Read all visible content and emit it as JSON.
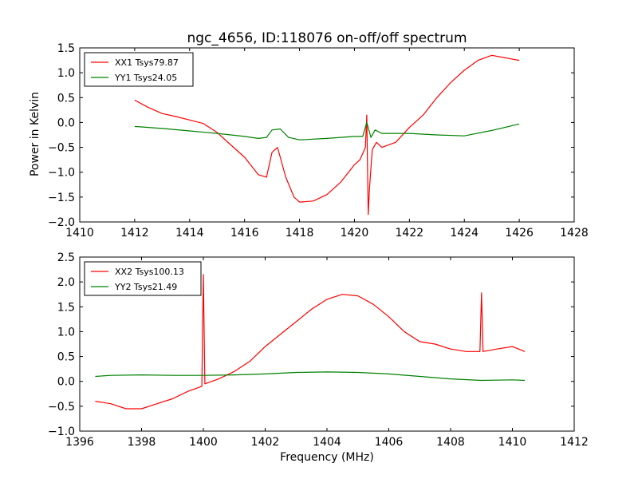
{
  "figure": {
    "title": "ngc_4656, ID:118076 on-off/off spectrum",
    "ylabel": "Power in Kelvin",
    "xlabel": "Frequency (MHz)"
  },
  "chart_data": [
    {
      "type": "line",
      "title": "ngc_4656, ID:118076 on-off/off spectrum",
      "xlabel": "",
      "ylabel": "Power in Kelvin",
      "xlim": [
        1410,
        1428
      ],
      "ylim": [
        -2.0,
        1.5
      ],
      "xticks": [
        1410,
        1412,
        1414,
        1416,
        1418,
        1420,
        1422,
        1424,
        1426,
        1428
      ],
      "xtick_labels": [
        "1410",
        "1412",
        "1414",
        "1416",
        "1418",
        "1420",
        "1422",
        "1424",
        "1426",
        "1428"
      ],
      "yticks": [
        -2.0,
        -1.5,
        -1.0,
        -0.5,
        0.0,
        0.5,
        1.0,
        1.5
      ],
      "ytick_labels": [
        "−2.0",
        "−1.5",
        "−1.0",
        "−0.5",
        "0.0",
        "0.5",
        "1.0",
        "1.5"
      ],
      "grid": false,
      "legend_position": "top-left",
      "series": [
        {
          "name": "XX1 Tsys79.87",
          "color": "#ff0000",
          "x": [
            1412.0,
            1412.5,
            1413.0,
            1413.5,
            1414.0,
            1414.5,
            1415.0,
            1415.5,
            1416.0,
            1416.5,
            1416.8,
            1417.0,
            1417.2,
            1417.5,
            1417.8,
            1418.0,
            1418.5,
            1419.0,
            1419.5,
            1420.0,
            1420.2,
            1420.4,
            1420.45,
            1420.5,
            1420.55,
            1420.65,
            1420.8,
            1421.0,
            1421.5,
            1422.0,
            1422.5,
            1423.0,
            1423.5,
            1424.0,
            1424.5,
            1425.0,
            1425.5,
            1426.0
          ],
          "y": [
            0.45,
            0.3,
            0.18,
            0.12,
            0.05,
            -0.02,
            -0.2,
            -0.45,
            -0.7,
            -1.05,
            -1.1,
            -0.6,
            -0.5,
            -1.1,
            -1.5,
            -1.6,
            -1.58,
            -1.45,
            -1.2,
            -0.85,
            -0.75,
            -0.5,
            0.15,
            -1.85,
            -1.3,
            -0.55,
            -0.4,
            -0.5,
            -0.4,
            -0.1,
            0.15,
            0.5,
            0.8,
            1.05,
            1.25,
            1.35,
            1.3,
            1.25
          ]
        },
        {
          "name": "YY1 Tsys24.05",
          "color": "#008000",
          "x": [
            1412.0,
            1413.0,
            1414.0,
            1415.0,
            1416.0,
            1416.5,
            1416.8,
            1417.0,
            1417.3,
            1417.6,
            1418.0,
            1419.0,
            1420.0,
            1420.3,
            1420.45,
            1420.6,
            1420.75,
            1421.0,
            1422.0,
            1423.0,
            1424.0,
            1425.0,
            1426.0
          ],
          "y": [
            -0.08,
            -0.12,
            -0.17,
            -0.22,
            -0.28,
            -0.32,
            -0.3,
            -0.15,
            -0.13,
            -0.3,
            -0.35,
            -0.32,
            -0.28,
            -0.28,
            0.0,
            -0.3,
            -0.15,
            -0.22,
            -0.22,
            -0.25,
            -0.27,
            -0.16,
            -0.03
          ]
        }
      ]
    },
    {
      "type": "line",
      "title": "",
      "xlabel": "Frequency (MHz)",
      "ylabel": "",
      "xlim": [
        1396,
        1412
      ],
      "ylim": [
        -1.0,
        2.5
      ],
      "xticks": [
        1396,
        1398,
        1400,
        1402,
        1404,
        1406,
        1408,
        1410,
        1412
      ],
      "xtick_labels": [
        "1396",
        "1398",
        "1400",
        "1402",
        "1404",
        "1406",
        "1408",
        "1410",
        "1412"
      ],
      "yticks": [
        -1.0,
        -0.5,
        0.0,
        0.5,
        1.0,
        1.5,
        2.0,
        2.5
      ],
      "ytick_labels": [
        "−1.0",
        "−0.5",
        "0.0",
        "0.5",
        "1.0",
        "1.5",
        "2.0",
        "2.5"
      ],
      "grid": false,
      "legend_position": "top-left",
      "series": [
        {
          "name": "XX2 Tsys100.13",
          "color": "#ff0000",
          "x": [
            1396.5,
            1397.0,
            1397.5,
            1398.0,
            1398.5,
            1399.0,
            1399.5,
            1399.95,
            1400.0,
            1400.05,
            1400.5,
            1401.0,
            1401.5,
            1402.0,
            1402.5,
            1403.0,
            1403.5,
            1404.0,
            1404.5,
            1405.0,
            1405.5,
            1406.0,
            1406.5,
            1407.0,
            1407.5,
            1408.0,
            1408.5,
            1408.95,
            1409.0,
            1409.05,
            1409.5,
            1410.0,
            1410.4
          ],
          "y": [
            -0.4,
            -0.45,
            -0.55,
            -0.55,
            -0.45,
            -0.35,
            -0.2,
            -0.1,
            2.15,
            -0.05,
            0.05,
            0.2,
            0.4,
            0.7,
            0.95,
            1.2,
            1.45,
            1.65,
            1.75,
            1.72,
            1.55,
            1.3,
            1.0,
            0.8,
            0.75,
            0.65,
            0.6,
            0.6,
            1.78,
            0.6,
            0.65,
            0.7,
            0.6
          ]
        },
        {
          "name": "YY2 Tsys21.49",
          "color": "#008000",
          "x": [
            1396.5,
            1397.0,
            1398.0,
            1399.0,
            1400.0,
            1401.0,
            1402.0,
            1403.0,
            1404.0,
            1405.0,
            1406.0,
            1407.0,
            1408.0,
            1409.0,
            1410.0,
            1410.4
          ],
          "y": [
            0.1,
            0.12,
            0.13,
            0.12,
            0.12,
            0.13,
            0.15,
            0.18,
            0.19,
            0.18,
            0.15,
            0.1,
            0.05,
            0.02,
            0.03,
            0.02
          ]
        }
      ]
    }
  ]
}
